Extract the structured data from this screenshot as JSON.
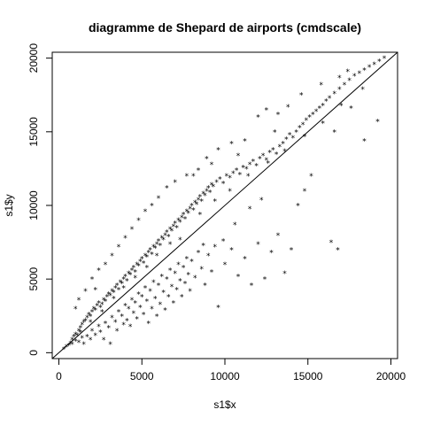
{
  "chart_data": {
    "type": "scatter",
    "title": "diagramme de Shepard de airports (cmdscale)",
    "xlabel": "s1$x",
    "ylabel": "s1$y",
    "xlim": [
      -400,
      20400
    ],
    "ylim": [
      -400,
      20400
    ],
    "xticks": [
      0,
      5000,
      10000,
      15000,
      20000
    ],
    "yticks": [
      0,
      5000,
      10000,
      15000,
      20000
    ],
    "xtick_labels": [
      "0",
      "5000",
      "10000",
      "15000",
      "20000"
    ],
    "ytick_labels": [
      "0",
      "5000",
      "10000",
      "15000",
      "20000"
    ],
    "marker": "*",
    "reference_line": {
      "slope": 1,
      "intercept": 0
    },
    "points": [
      [
        300,
        250
      ],
      [
        450,
        420
      ],
      [
        600,
        500
      ],
      [
        700,
        650
      ],
      [
        800,
        900
      ],
      [
        900,
        1100
      ],
      [
        1000,
        1250
      ],
      [
        1100,
        1200
      ],
      [
        1200,
        1500
      ],
      [
        1300,
        1700
      ],
      [
        1400,
        1900
      ],
      [
        1500,
        2100
      ],
      [
        1600,
        2200
      ],
      [
        1700,
        2400
      ],
      [
        1800,
        2600
      ],
      [
        1900,
        2500
      ],
      [
        2000,
        2800
      ],
      [
        2100,
        3000
      ],
      [
        2200,
        2900
      ],
      [
        2300,
        3200
      ],
      [
        2400,
        3400
      ],
      [
        2500,
        3100
      ],
      [
        2600,
        3300
      ],
      [
        2700,
        3600
      ],
      [
        2800,
        3500
      ],
      [
        2900,
        3800
      ],
      [
        3000,
        4000
      ],
      [
        3100,
        3900
      ],
      [
        3200,
        4200
      ],
      [
        3300,
        4100
      ],
      [
        3400,
        4400
      ],
      [
        3500,
        4600
      ],
      [
        3600,
        4300
      ],
      [
        3700,
        4800
      ],
      [
        3800,
        4700
      ],
      [
        3900,
        5000
      ],
      [
        4000,
        5200
      ],
      [
        4100,
        4900
      ],
      [
        4200,
        5400
      ],
      [
        4300,
        5300
      ],
      [
        4400,
        5600
      ],
      [
        4500,
        5800
      ],
      [
        4600,
        5500
      ],
      [
        4700,
        6000
      ],
      [
        4800,
        5900
      ],
      [
        4900,
        6200
      ],
      [
        5000,
        6400
      ],
      [
        5100,
        6100
      ],
      [
        5200,
        6600
      ],
      [
        5300,
        6500
      ],
      [
        5400,
        6800
      ],
      [
        5500,
        7000
      ],
      [
        5600,
        6700
      ],
      [
        5700,
        7200
      ],
      [
        5800,
        7100
      ],
      [
        5900,
        7400
      ],
      [
        6000,
        7600
      ],
      [
        6100,
        7300
      ],
      [
        6200,
        7800
      ],
      [
        6300,
        7700
      ],
      [
        6400,
        8000
      ],
      [
        6500,
        8200
      ],
      [
        6600,
        7900
      ],
      [
        6700,
        8400
      ],
      [
        6800,
        8300
      ],
      [
        6900,
        8600
      ],
      [
        7000,
        8800
      ],
      [
        7100,
        8500
      ],
      [
        7200,
        9000
      ],
      [
        7300,
        8900
      ],
      [
        7400,
        9200
      ],
      [
        7500,
        9400
      ],
      [
        7600,
        9100
      ],
      [
        7700,
        9600
      ],
      [
        7800,
        9500
      ],
      [
        7900,
        9800
      ],
      [
        8000,
        10000
      ],
      [
        8100,
        9700
      ],
      [
        8200,
        10200
      ],
      [
        8300,
        10100
      ],
      [
        8400,
        10400
      ],
      [
        8500,
        10600
      ],
      [
        8600,
        10300
      ],
      [
        8700,
        10800
      ],
      [
        8800,
        10700
      ],
      [
        8900,
        11000
      ],
      [
        9000,
        11200
      ],
      [
        9100,
        10900
      ],
      [
        9200,
        11400
      ],
      [
        9300,
        11300
      ],
      [
        9500,
        11600
      ],
      [
        9700,
        11800
      ],
      [
        9900,
        11500
      ],
      [
        10100,
        12000
      ],
      [
        10300,
        11900
      ],
      [
        10500,
        12200
      ],
      [
        10700,
        12400
      ],
      [
        10900,
        12100
      ],
      [
        11100,
        12600
      ],
      [
        11300,
        12500
      ],
      [
        11500,
        12800
      ],
      [
        11700,
        13000
      ],
      [
        11900,
        12700
      ],
      [
        12100,
        13200
      ],
      [
        12300,
        13400
      ],
      [
        12500,
        13100
      ],
      [
        12700,
        13600
      ],
      [
        12900,
        13800
      ],
      [
        13100,
        13500
      ],
      [
        13300,
        14000
      ],
      [
        13500,
        14200
      ],
      [
        13700,
        14500
      ],
      [
        13900,
        14800
      ],
      [
        14100,
        14600
      ],
      [
        14300,
        15000
      ],
      [
        14500,
        15300
      ],
      [
        14700,
        15500
      ],
      [
        14900,
        15800
      ],
      [
        15100,
        16000
      ],
      [
        15300,
        16200
      ],
      [
        15500,
        16400
      ],
      [
        15700,
        16600
      ],
      [
        15900,
        16800
      ],
      [
        16100,
        17100
      ],
      [
        16300,
        17300
      ],
      [
        16600,
        17600
      ],
      [
        16900,
        17900
      ],
      [
        17200,
        18200
      ],
      [
        17500,
        18500
      ],
      [
        17800,
        18800
      ],
      [
        18100,
        19000
      ],
      [
        18400,
        19200
      ],
      [
        18700,
        19400
      ],
      [
        19000,
        19600
      ],
      [
        19300,
        19800
      ],
      [
        19600,
        20000
      ],
      [
        800,
        600
      ],
      [
        1000,
        800
      ],
      [
        1200,
        700
      ],
      [
        1400,
        1000
      ],
      [
        1500,
        600
      ],
      [
        1700,
        1100
      ],
      [
        1900,
        900
      ],
      [
        2000,
        1500
      ],
      [
        2200,
        1200
      ],
      [
        2400,
        1800
      ],
      [
        2500,
        1400
      ],
      [
        2700,
        900
      ],
      [
        2800,
        2000
      ],
      [
        3000,
        1700
      ],
      [
        3100,
        600
      ],
      [
        3200,
        2400
      ],
      [
        3400,
        2100
      ],
      [
        3500,
        1500
      ],
      [
        3600,
        2800
      ],
      [
        3800,
        2500
      ],
      [
        3900,
        1900
      ],
      [
        4000,
        3200
      ],
      [
        4100,
        2200
      ],
      [
        4200,
        3000
      ],
      [
        4300,
        1800
      ],
      [
        4400,
        3600
      ],
      [
        4500,
        2700
      ],
      [
        4600,
        3400
      ],
      [
        4700,
        2300
      ],
      [
        4800,
        4000
      ],
      [
        4900,
        3100
      ],
      [
        5000,
        3800
      ],
      [
        5100,
        2600
      ],
      [
        5200,
        4400
      ],
      [
        5300,
        3500
      ],
      [
        5400,
        2000
      ],
      [
        5500,
        4200
      ],
      [
        5600,
        3000
      ],
      [
        5700,
        4800
      ],
      [
        5800,
        3700
      ],
      [
        5900,
        2500
      ],
      [
        6000,
        4600
      ],
      [
        6100,
        3300
      ],
      [
        6200,
        5200
      ],
      [
        6300,
        4100
      ],
      [
        6400,
        2900
      ],
      [
        6500,
        5000
      ],
      [
        6600,
        3800
      ],
      [
        6700,
        5600
      ],
      [
        6800,
        4500
      ],
      [
        6900,
        3400
      ],
      [
        7000,
        5400
      ],
      [
        7100,
        4300
      ],
      [
        7200,
        6000
      ],
      [
        7300,
        4900
      ],
      [
        7400,
        3800
      ],
      [
        7500,
        5800
      ],
      [
        7600,
        4700
      ],
      [
        7700,
        6400
      ],
      [
        7800,
        5300
      ],
      [
        7900,
        4200
      ],
      [
        8000,
        6200
      ],
      [
        8200,
        5100
      ],
      [
        8400,
        6800
      ],
      [
        8600,
        5700
      ],
      [
        8800,
        4600
      ],
      [
        9000,
        6600
      ],
      [
        9200,
        5500
      ],
      [
        9400,
        7200
      ],
      [
        9600,
        3100
      ],
      [
        10000,
        6000
      ],
      [
        10400,
        7000
      ],
      [
        10800,
        5200
      ],
      [
        11200,
        6400
      ],
      [
        11600,
        4600
      ],
      [
        12000,
        7400
      ],
      [
        12400,
        5000
      ],
      [
        12800,
        6800
      ],
      [
        13200,
        8000
      ],
      [
        13600,
        5400
      ],
      [
        14000,
        7000
      ],
      [
        14400,
        10000
      ],
      [
        14800,
        11000
      ],
      [
        15200,
        12000
      ],
      [
        16400,
        7500
      ],
      [
        16800,
        7000
      ],
      [
        18400,
        14400
      ],
      [
        19200,
        15700
      ],
      [
        16600,
        15000
      ],
      [
        17600,
        16600
      ],
      [
        12000,
        16000
      ],
      [
        12500,
        16500
      ],
      [
        13000,
        15000
      ],
      [
        13200,
        16200
      ],
      [
        11200,
        14400
      ],
      [
        10400,
        14200
      ],
      [
        9600,
        13800
      ],
      [
        8900,
        13200
      ],
      [
        8400,
        12400
      ],
      [
        7700,
        12000
      ],
      [
        7000,
        11600
      ],
      [
        6500,
        11200
      ],
      [
        6000,
        10500
      ],
      [
        5600,
        10000
      ],
      [
        5200,
        9600
      ],
      [
        4800,
        9000
      ],
      [
        4400,
        8400
      ],
      [
        4000,
        7800
      ],
      [
        3600,
        7200
      ],
      [
        3200,
        6600
      ],
      [
        2800,
        6000
      ],
      [
        2400,
        5600
      ],
      [
        2000,
        5000
      ],
      [
        1600,
        4200
      ],
      [
        1200,
        3600
      ],
      [
        1000,
        3000
      ],
      [
        2200,
        4300
      ],
      [
        8100,
        12000
      ],
      [
        9200,
        12800
      ],
      [
        10800,
        13400
      ],
      [
        13800,
        16700
      ],
      [
        14600,
        17500
      ],
      [
        15800,
        18200
      ],
      [
        16900,
        18700
      ],
      [
        17400,
        19100
      ],
      [
        11500,
        9800
      ],
      [
        12200,
        10400
      ],
      [
        10600,
        8700
      ],
      [
        9900,
        7600
      ],
      [
        8700,
        7300
      ],
      [
        7300,
        7700
      ],
      [
        6700,
        7400
      ],
      [
        5900,
        6600
      ],
      [
        5300,
        5800
      ],
      [
        4600,
        5100
      ],
      [
        3900,
        4400
      ],
      [
        3300,
        3700
      ],
      [
        2600,
        2800
      ],
      [
        1900,
        2100
      ],
      [
        1300,
        1400
      ],
      [
        8500,
        9400
      ],
      [
        9400,
        10300
      ],
      [
        10300,
        11000
      ],
      [
        11400,
        12000
      ],
      [
        12600,
        12900
      ],
      [
        13600,
        13700
      ],
      [
        14800,
        14700
      ],
      [
        15900,
        15600
      ],
      [
        17000,
        16800
      ],
      [
        18300,
        17900
      ]
    ]
  }
}
